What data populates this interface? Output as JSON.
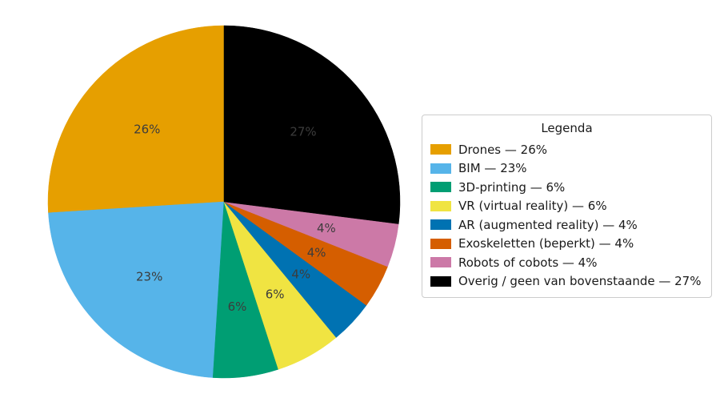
{
  "chart_data": {
    "type": "pie",
    "legend_title": "Legenda",
    "labels": [
      "Drones",
      "BIM",
      "3D-printing",
      "VR (virtual reality)",
      "AR (augmented reality)",
      "Exoskeletten (beperkt)",
      "Robots of cobots",
      "Overig / geen van bovenstaande"
    ],
    "values": [
      26,
      23,
      6,
      6,
      4,
      4,
      4,
      27
    ],
    "pct_labels": [
      "26%",
      "23%",
      "6%",
      "6%",
      "4%",
      "4%",
      "4%",
      "27%"
    ],
    "legend_entries": [
      "Drones — 26%",
      "BIM — 23%",
      "3D-printing — 6%",
      "VR (virtual reality) — 6%",
      "AR (augmented reality) — 4%",
      "Exoskeletten (beperkt) — 4%",
      "Robots of cobots — 4%",
      "Overig / geen van bovenstaande — 27%"
    ],
    "colors": [
      "#E69F00",
      "#56B4E9",
      "#009E73",
      "#F0E442",
      "#0072B2",
      "#D55E00",
      "#CC79A7",
      "#000000"
    ],
    "pct_label_color": "#3c3c3c",
    "start_angle_deg": 90,
    "direction": "counterclockwise",
    "legend_position": "right",
    "legend_border_color": "#cccccc"
  }
}
